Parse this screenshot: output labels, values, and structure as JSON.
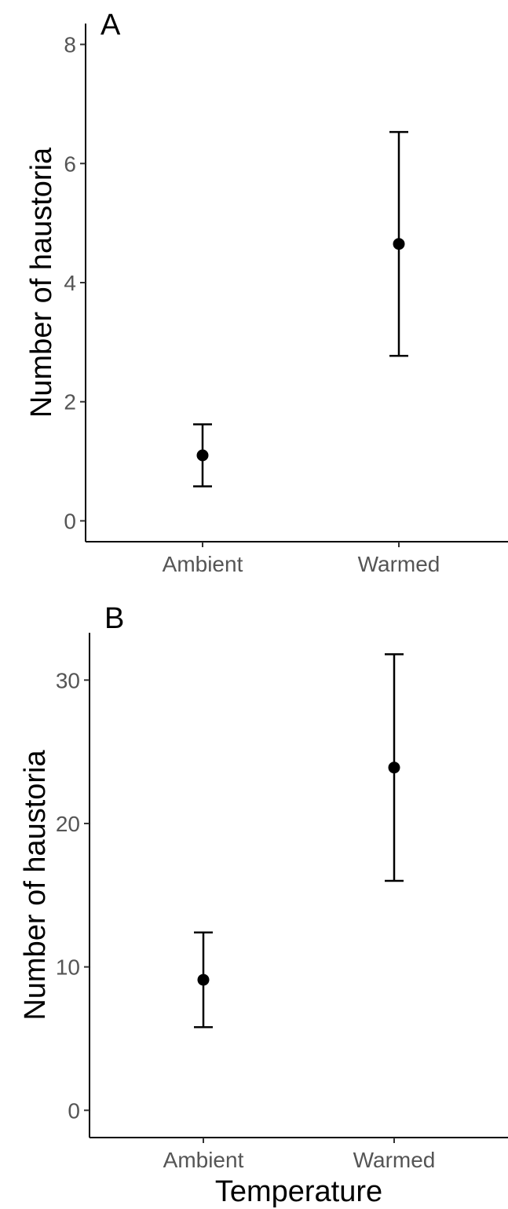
{
  "chart_data": [
    {
      "type": "scatter",
      "panel_label": "A",
      "ylabel": "Number of haustoria",
      "xlabel": "",
      "categories": [
        "Ambient",
        "Warmed"
      ],
      "values": [
        1.1,
        4.65
      ],
      "error_low": [
        0.58,
        2.77
      ],
      "error_high": [
        1.62,
        6.53
      ],
      "ylim": [
        -0.35,
        8.35
      ],
      "yticks": [
        0,
        2,
        4,
        6,
        8
      ],
      "ytick_labels": [
        "0",
        "2",
        "4",
        "6",
        "8"
      ],
      "grid": false,
      "point_color": "#000000"
    },
    {
      "type": "scatter",
      "panel_label": "B",
      "ylabel": "Number of haustoria",
      "xlabel": "Temperature",
      "categories": [
        "Ambient",
        "Warmed"
      ],
      "values": [
        9.1,
        23.9
      ],
      "error_low": [
        5.8,
        16.0
      ],
      "error_high": [
        12.4,
        31.8
      ],
      "ylim": [
        -1.9,
        33.3
      ],
      "yticks": [
        0,
        10,
        20,
        30
      ],
      "ytick_labels": [
        "0",
        "10",
        "20",
        "30"
      ],
      "grid": false,
      "point_color": "#000000"
    }
  ]
}
